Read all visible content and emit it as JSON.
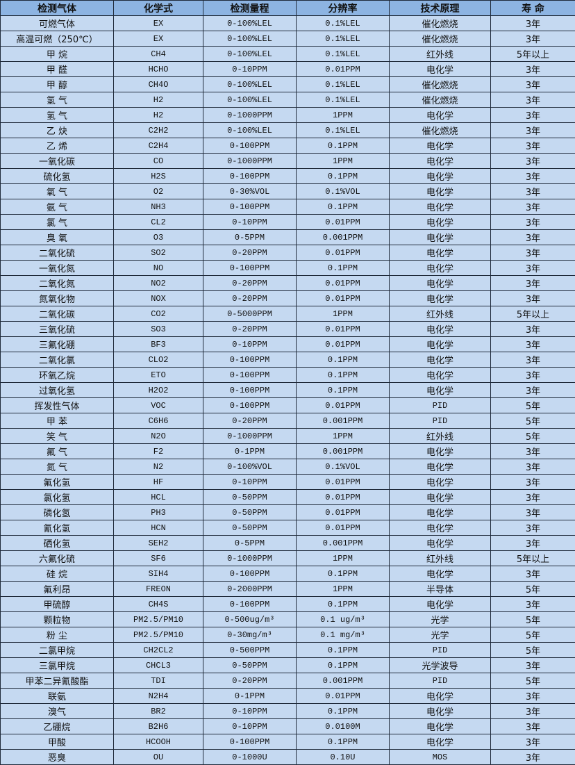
{
  "table": {
    "headers": [
      "检测气体",
      "化学式",
      "检测量程",
      "分辨率",
      "技术原理",
      "寿 命"
    ],
    "rows": [
      [
        "可燃气体",
        "EX",
        "0-100%LEL",
        "0.1%LEL",
        "催化燃烧",
        "3年"
      ],
      [
        "高温可燃（250℃）",
        "EX",
        "0-100%LEL",
        "0.1%LEL",
        "催化燃烧",
        "3年"
      ],
      [
        "甲 烷",
        "CH4",
        "0-100%LEL",
        "0.1%LEL",
        "红外线",
        "5年以上"
      ],
      [
        "甲 醛",
        "HCHO",
        "0-10PPM",
        "0.01PPM",
        "电化学",
        "3年"
      ],
      [
        "甲 醇",
        "CH4O",
        "0-100%LEL",
        "0.1%LEL",
        "催化燃烧",
        "3年"
      ],
      [
        "氢 气",
        "H2",
        "0-100%LEL",
        "0.1%LEL",
        "催化燃烧",
        "3年"
      ],
      [
        "氢 气",
        "H2",
        "0-1000PPM",
        "1PPM",
        "电化学",
        "3年"
      ],
      [
        "乙 炔",
        "C2H2",
        "0-100%LEL",
        "0.1%LEL",
        "催化燃烧",
        "3年"
      ],
      [
        "乙 烯",
        "C2H4",
        "0-100PPM",
        "0.1PPM",
        "电化学",
        "3年"
      ],
      [
        "一氧化碳",
        "CO",
        "0-1000PPM",
        "1PPM",
        "电化学",
        "3年"
      ],
      [
        "硫化氢",
        "H2S",
        "0-100PPM",
        "0.1PPM",
        "电化学",
        "3年"
      ],
      [
        "氧 气",
        "O2",
        "0-30%VOL",
        "0.1%VOL",
        "电化学",
        "3年"
      ],
      [
        "氨 气",
        "NH3",
        "0-100PPM",
        "0.1PPM",
        "电化学",
        "3年"
      ],
      [
        "氯 气",
        "CL2",
        "0-10PPM",
        "0.01PPM",
        "电化学",
        "3年"
      ],
      [
        "臭 氧",
        "O3",
        "0-5PPM",
        "0.001PPM",
        "电化学",
        "3年"
      ],
      [
        "二氧化硫",
        "SO2",
        "0-20PPM",
        "0.01PPM",
        "电化学",
        "3年"
      ],
      [
        "一氧化氮",
        "NO",
        "0-100PPM",
        "0.1PPM",
        "电化学",
        "3年"
      ],
      [
        "二氧化氮",
        "NO2",
        "0-20PPM",
        "0.01PPM",
        "电化学",
        "3年"
      ],
      [
        "氮氧化物",
        "NOX",
        "0-20PPM",
        "0.01PPM",
        "电化学",
        "3年"
      ],
      [
        "二氧化碳",
        "CO2",
        "0-5000PPM",
        "1PPM",
        "红外线",
        "5年以上"
      ],
      [
        "三氧化硫",
        "SO3",
        "0-20PPM",
        "0.01PPM",
        "电化学",
        "3年"
      ],
      [
        "三氟化硼",
        "BF3",
        "0-10PPM",
        "0.01PPM",
        "电化学",
        "3年"
      ],
      [
        "二氧化氯",
        "CLO2",
        "0-100PPM",
        "0.1PPM",
        "电化学",
        "3年"
      ],
      [
        "环氧乙烷",
        "ETO",
        "0-100PPM",
        "0.1PPM",
        "电化学",
        "3年"
      ],
      [
        "过氧化氢",
        "H2O2",
        "0-100PPM",
        "0.1PPM",
        "电化学",
        "3年"
      ],
      [
        "挥发性气体",
        "VOC",
        "0-100PPM",
        "0.01PPM",
        "PID",
        "5年"
      ],
      [
        "甲 苯",
        "C6H6",
        "0-20PPM",
        "0.001PPM",
        "PID",
        "5年"
      ],
      [
        "笑 气",
        "N2O",
        "0-1000PPM",
        "1PPM",
        "红外线",
        "5年"
      ],
      [
        "氟 气",
        "F2",
        "0-1PPM",
        "0.001PPM",
        "电化学",
        "3年"
      ],
      [
        "氮 气",
        "N2",
        "0-100%VOL",
        "0.1%VOL",
        "电化学",
        "3年"
      ],
      [
        "氟化氢",
        "HF",
        "0-10PPM",
        "0.01PPM",
        "电化学",
        "3年"
      ],
      [
        "氯化氢",
        "HCL",
        "0-50PPM",
        "0.01PPM",
        "电化学",
        "3年"
      ],
      [
        "磷化氢",
        "PH3",
        "0-50PPM",
        "0.01PPM",
        "电化学",
        "3年"
      ],
      [
        "氰化氢",
        "HCN",
        "0-50PPM",
        "0.01PPM",
        "电化学",
        "3年"
      ],
      [
        "硒化氢",
        "SEH2",
        "0-5PPM",
        "0.001PPM",
        "电化学",
        "3年"
      ],
      [
        "六氟化硫",
        "SF6",
        "0-1000PPM",
        "1PPM",
        "红外线",
        "5年以上"
      ],
      [
        "硅 烷",
        "SIH4",
        "0-100PPM",
        "0.1PPM",
        "电化学",
        "3年"
      ],
      [
        "氟利昂",
        "FREON",
        "0-2000PPM",
        "1PPM",
        "半导体",
        "5年"
      ],
      [
        "甲硫醇",
        "CH4S",
        "0-100PPM",
        "0.1PPM",
        "电化学",
        "3年"
      ],
      [
        "颗粒物",
        "PM2.5/PM10",
        "0-500ug/m³",
        "0.1 ug/m³",
        "光学",
        "5年"
      ],
      [
        "粉 尘",
        "PM2.5/PM10",
        "0-30mg/m³",
        "0.1 mg/m³",
        "光学",
        "5年"
      ],
      [
        "二氯甲烷",
        "CH2CL2",
        "0-500PPM",
        "0.1PPM",
        "PID",
        "5年"
      ],
      [
        "三氯甲烷",
        "CHCL3",
        "0-50PPM",
        "0.1PPM",
        "光学波导",
        "3年"
      ],
      [
        "甲苯二异氰酸酯",
        "TDI",
        "0-20PPM",
        "0.001PPM",
        "PID",
        "5年"
      ],
      [
        "联氨",
        "N2H4",
        "0-1PPM",
        "0.01PPM",
        "电化学",
        "3年"
      ],
      [
        "溴气",
        "BR2",
        "0-10PPM",
        "0.1PPM",
        "电化学",
        "3年"
      ],
      [
        "乙硼烷",
        "B2H6",
        "0-10PPM",
        "0.0100M",
        "电化学",
        "3年"
      ],
      [
        "甲酸",
        "HCOOH",
        "0-100PPM",
        "0.1PPM",
        "电化学",
        "3年"
      ],
      [
        "恶臭",
        "OU",
        "0-1000U",
        "0.10U",
        "MOS",
        "3年"
      ]
    ]
  }
}
